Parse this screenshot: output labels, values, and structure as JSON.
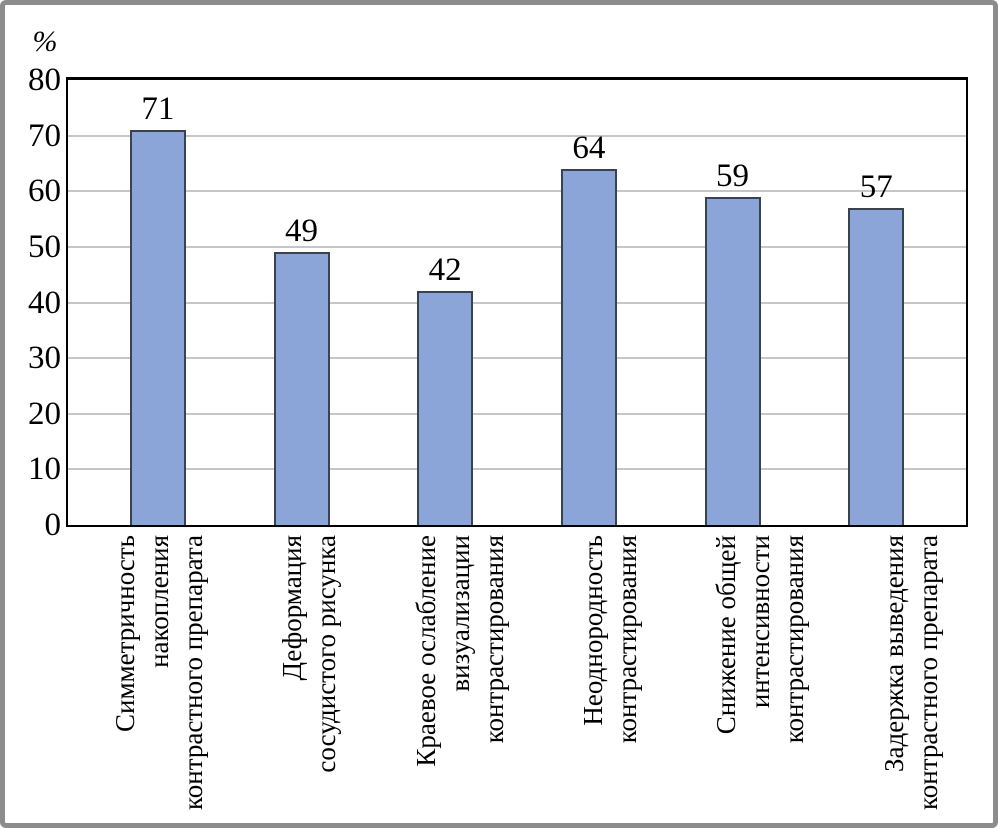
{
  "window": {
    "background": "#ffffff",
    "frame_border_color": "#8C8C8C"
  },
  "chart_data": {
    "type": "bar",
    "title": "",
    "xlabel": "",
    "ylabel": "%",
    "ylim": [
      0,
      80
    ],
    "yticks": [
      0,
      10,
      20,
      30,
      40,
      50,
      60,
      70,
      80
    ],
    "grid": "horizontal",
    "legend_position": "none",
    "bar_color": "#8CA5D8",
    "bar_border_color": "#3A4250",
    "gridline_color": "#C6C6C6",
    "axis_color": "#000000",
    "categories": [
      {
        "label": "Симметричность накопления контрастного препарата",
        "lines": [
          "Симметричность",
          "накопления",
          "контрастного препарата"
        ]
      },
      {
        "label": "Деформация сосудистого рисунка",
        "lines": [
          "Деформация",
          "сосудистого рисунка"
        ]
      },
      {
        "label": "Краевое ослабление визуализации контрастирования",
        "lines": [
          "Краевое ослабление",
          "визуализации",
          "контрастирования"
        ]
      },
      {
        "label": "Неоднородность контрастирования",
        "lines": [
          "Неоднородность",
          "контрастирования"
        ]
      },
      {
        "label": "Снижение общей интенсивности контрастирования",
        "lines": [
          "Снижение общей",
          "интенсивности",
          "контрастирования"
        ]
      },
      {
        "label": "Задержка выведения контрастного препарата",
        "lines": [
          "Задержка выведения",
          "контрастного препарата"
        ]
      }
    ],
    "values": [
      71,
      49,
      42,
      64,
      59,
      57
    ],
    "data_labels": [
      "71",
      "49",
      "42",
      "64",
      "59",
      "57"
    ]
  }
}
